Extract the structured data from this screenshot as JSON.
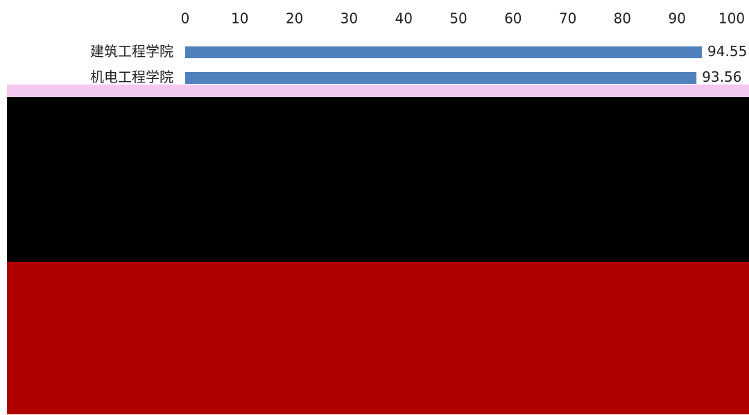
{
  "chart_data": {
    "type": "hbar",
    "categories": [
      "建筑工程学院",
      "机电工程学院"
    ],
    "values": [
      94.55,
      93.56
    ],
    "color": "#4f81bd",
    "xlim": [
      0,
      100
    ],
    "xticks": [
      0,
      10,
      20,
      30,
      40,
      50,
      60,
      70,
      80,
      90,
      100
    ]
  }
}
